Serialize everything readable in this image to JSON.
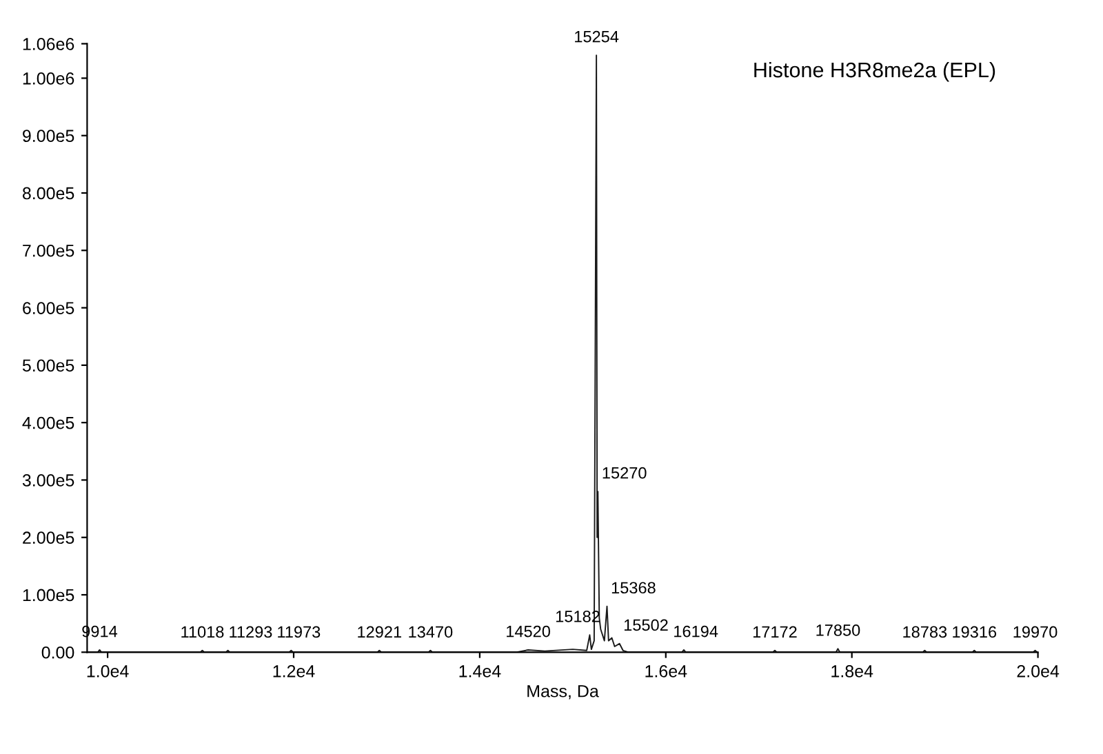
{
  "chart_data": {
    "type": "line",
    "title": "Histone H3R8me2a (EPL)",
    "xlabel": "Mass, Da",
    "x": [
      9780,
      9894,
      9914,
      9934,
      10998,
      11018,
      11038,
      11273,
      11293,
      11313,
      11953,
      11973,
      11993,
      12901,
      12921,
      12941,
      13450,
      13470,
      13490,
      14400,
      14520,
      14700,
      15000,
      15150,
      15182,
      15200,
      15230,
      15254,
      15262,
      15270,
      15285,
      15300,
      15340,
      15368,
      15385,
      15420,
      15450,
      15502,
      15540,
      15600,
      16174,
      16194,
      16214,
      17152,
      17172,
      17192,
      17830,
      17850,
      17870,
      18763,
      18783,
      18803,
      19296,
      19316,
      19336,
      19950,
      19970,
      19990,
      20000
    ],
    "series": [
      {
        "color": "#1a1a1a",
        "values": [
          0,
          0,
          4000,
          0,
          0,
          3000,
          0,
          0,
          3000,
          0,
          0,
          3000,
          0,
          0,
          3000,
          0,
          0,
          3000,
          0,
          0,
          4000,
          2000,
          5000,
          3000,
          30000,
          5000,
          20000,
          1040000,
          200000,
          280000,
          60000,
          40000,
          20000,
          80000,
          20000,
          25000,
          10000,
          15000,
          3000,
          0,
          0,
          4000,
          0,
          0,
          3000,
          0,
          0,
          6000,
          0,
          0,
          3000,
          0,
          0,
          3000,
          0,
          0,
          3000,
          0,
          0
        ]
      }
    ],
    "annotations": [
      {
        "text": "9914",
        "x": 9914,
        "y": 4000
      },
      {
        "text": "11018",
        "x": 11018,
        "y": 3000
      },
      {
        "text": "11293",
        "x": 11293,
        "y": 3000
      },
      {
        "text": "11973",
        "x": 11973,
        "y": 3000
      },
      {
        "text": "12921",
        "x": 12921,
        "y": 3000
      },
      {
        "text": "13470",
        "x": 13470,
        "y": 3000
      },
      {
        "text": "14520",
        "x": 14520,
        "y": 4000
      },
      {
        "text": "15182",
        "x": 15182,
        "y": 30000
      },
      {
        "text": "15254",
        "x": 15254,
        "y": 1040000
      },
      {
        "text": "15270",
        "x": 15270,
        "y": 280000
      },
      {
        "text": "15368",
        "x": 15368,
        "y": 80000
      },
      {
        "text": "15502",
        "x": 15502,
        "y": 15000
      },
      {
        "text": "16194",
        "x": 16194,
        "y": 4000
      },
      {
        "text": "17172",
        "x": 17172,
        "y": 3000
      },
      {
        "text": "17850",
        "x": 17850,
        "y": 6000
      },
      {
        "text": "18783",
        "x": 18783,
        "y": 3000
      },
      {
        "text": "19316",
        "x": 19316,
        "y": 3000
      },
      {
        "text": "19970",
        "x": 19970,
        "y": 3000
      }
    ],
    "xlim": [
      9780,
      20000
    ],
    "xticks": [
      {
        "value": 10000,
        "label": "1.0e4"
      },
      {
        "value": 12000,
        "label": "1.2e4"
      },
      {
        "value": 14000,
        "label": "1.4e4"
      },
      {
        "value": 16000,
        "label": "1.6e4"
      },
      {
        "value": 18000,
        "label": "1.8e4"
      },
      {
        "value": 20000,
        "label": "2.0e4"
      }
    ],
    "ylim": [
      0,
      1060000
    ],
    "yticks": [
      {
        "value": 0,
        "label": "0.00"
      },
      {
        "value": 100000,
        "label": "1.00e5"
      },
      {
        "value": 200000,
        "label": "2.00e5"
      },
      {
        "value": 300000,
        "label": "3.00e5"
      },
      {
        "value": 400000,
        "label": "4.00e5"
      },
      {
        "value": 500000,
        "label": "5.00e5"
      },
      {
        "value": 600000,
        "label": "6.00e5"
      },
      {
        "value": 700000,
        "label": "7.00e5"
      },
      {
        "value": 800000,
        "label": "8.00e5"
      },
      {
        "value": 900000,
        "label": "9.00e5"
      },
      {
        "value": 1000000,
        "label": "1.00e6"
      },
      {
        "value": 1060000,
        "label": "1.06e6"
      }
    ],
    "grid": false,
    "legend": false,
    "marker": "none",
    "line_style": "solid"
  }
}
